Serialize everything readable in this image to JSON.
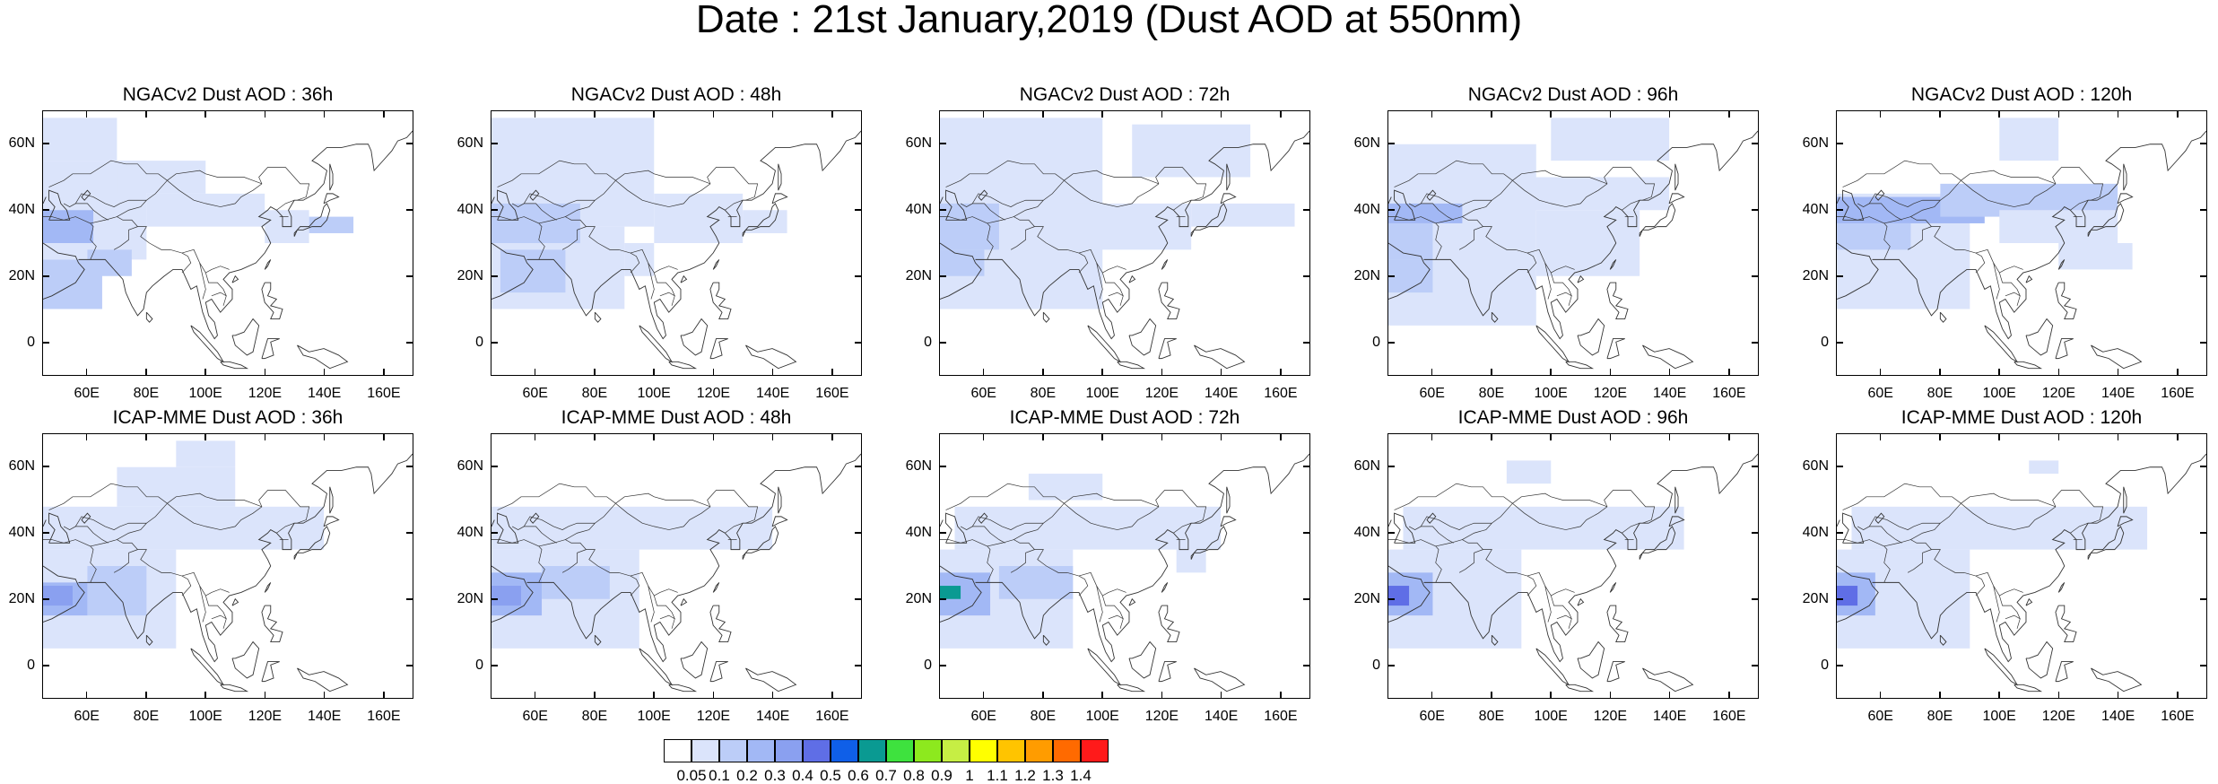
{
  "title": "Date : 21st January,2019 (Dust AOD at 550nm)",
  "lat_ticks": [
    "60N",
    "40N",
    "20N",
    "0"
  ],
  "lon_ticks": [
    "60E",
    "80E",
    "100E",
    "120E",
    "140E",
    "160E"
  ],
  "panels": [
    {
      "title": "NGACv2 Dust AOD : 36h"
    },
    {
      "title": "NGACv2 Dust AOD : 48h"
    },
    {
      "title": "NGACv2 Dust AOD : 72h"
    },
    {
      "title": "NGACv2 Dust AOD : 96h"
    },
    {
      "title": "NGACv2 Dust AOD : 120h"
    },
    {
      "title": "ICAP-MME Dust AOD : 36h"
    },
    {
      "title": "ICAP-MME Dust AOD : 48h"
    },
    {
      "title": "ICAP-MME Dust AOD : 72h"
    },
    {
      "title": "ICAP-MME Dust AOD : 96h"
    },
    {
      "title": "ICAP-MME Dust AOD : 120h"
    }
  ],
  "colorbar": {
    "labels": [
      "0.05",
      "0.1",
      "0.2",
      "0.3",
      "0.4",
      "0.5",
      "0.6",
      "0.7",
      "0.8",
      "0.9",
      "1",
      "1.1",
      "1.2",
      "1.3",
      "1.4"
    ],
    "colors": [
      "#ffffff",
      "#dbe4fb",
      "#bccdf8",
      "#a2b8f5",
      "#8aa0f0",
      "#5f6ee6",
      "#0f5fe8",
      "#0a9a92",
      "#3ee23e",
      "#8de91e",
      "#c6ee44",
      "#ffff00",
      "#ffc400",
      "#ff9c00",
      "#ff6a00",
      "#ff1a1a"
    ]
  }
}
